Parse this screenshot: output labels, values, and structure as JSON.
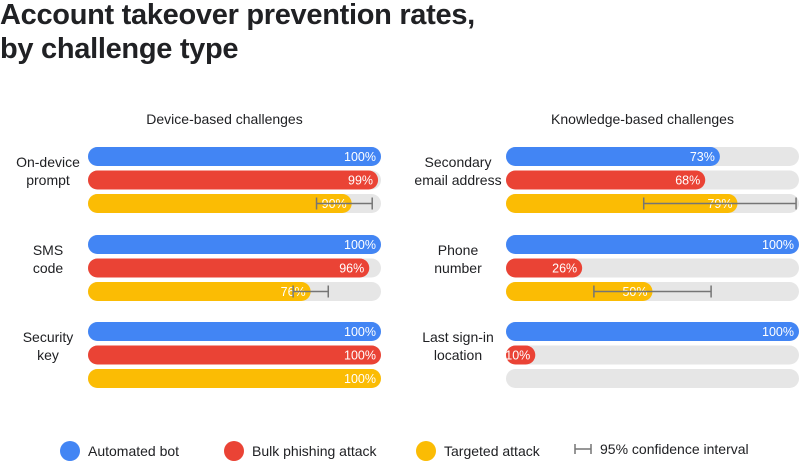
{
  "chart_data": {
    "type": "bar",
    "title": "Account takeover prevention rates, by challenge type",
    "title_lines": [
      "Account takeover prevention rates,",
      "by challenge type"
    ],
    "xlim": [
      0,
      100
    ],
    "series_names": [
      "Automated bot",
      "Bulk phishing attack",
      "Targeted attack"
    ],
    "ci_legend": "95% confidence interval",
    "colors": {
      "Automated bot": "#4285f4",
      "Bulk phishing attack": "#ea4335",
      "Targeted attack": "#fbbc04",
      "track": "#e6e6e6",
      "ci": "#757575"
    },
    "panels": [
      {
        "title": "Device-based challenges",
        "categories": [
          {
            "label": [
              "On-device",
              "prompt"
            ],
            "values": [
              100,
              99,
              90
            ],
            "ci": [
              null,
              null,
              [
                78,
                97
              ]
            ]
          },
          {
            "label": [
              "SMS",
              "code"
            ],
            "values": [
              100,
              96,
              76
            ],
            "ci": [
              null,
              null,
              [
                70,
                82
              ]
            ]
          },
          {
            "label": [
              "Security",
              "key"
            ],
            "values": [
              100,
              100,
              100
            ],
            "ci": [
              null,
              null,
              null
            ]
          }
        ]
      },
      {
        "title": "Knowledge-based challenges",
        "categories": [
          {
            "label": [
              "Secondary",
              "email address"
            ],
            "values": [
              73,
              68,
              79
            ],
            "ci": [
              null,
              null,
              [
                47,
                99
              ]
            ]
          },
          {
            "label": [
              "Phone",
              "number"
            ],
            "values": [
              100,
              26,
              50
            ],
            "ci": [
              null,
              null,
              [
                30,
                70
              ]
            ]
          },
          {
            "label": [
              "Last sign-in",
              "location"
            ],
            "values": [
              100,
              10,
              null
            ],
            "ci": [
              null,
              null,
              null
            ]
          }
        ]
      }
    ]
  }
}
